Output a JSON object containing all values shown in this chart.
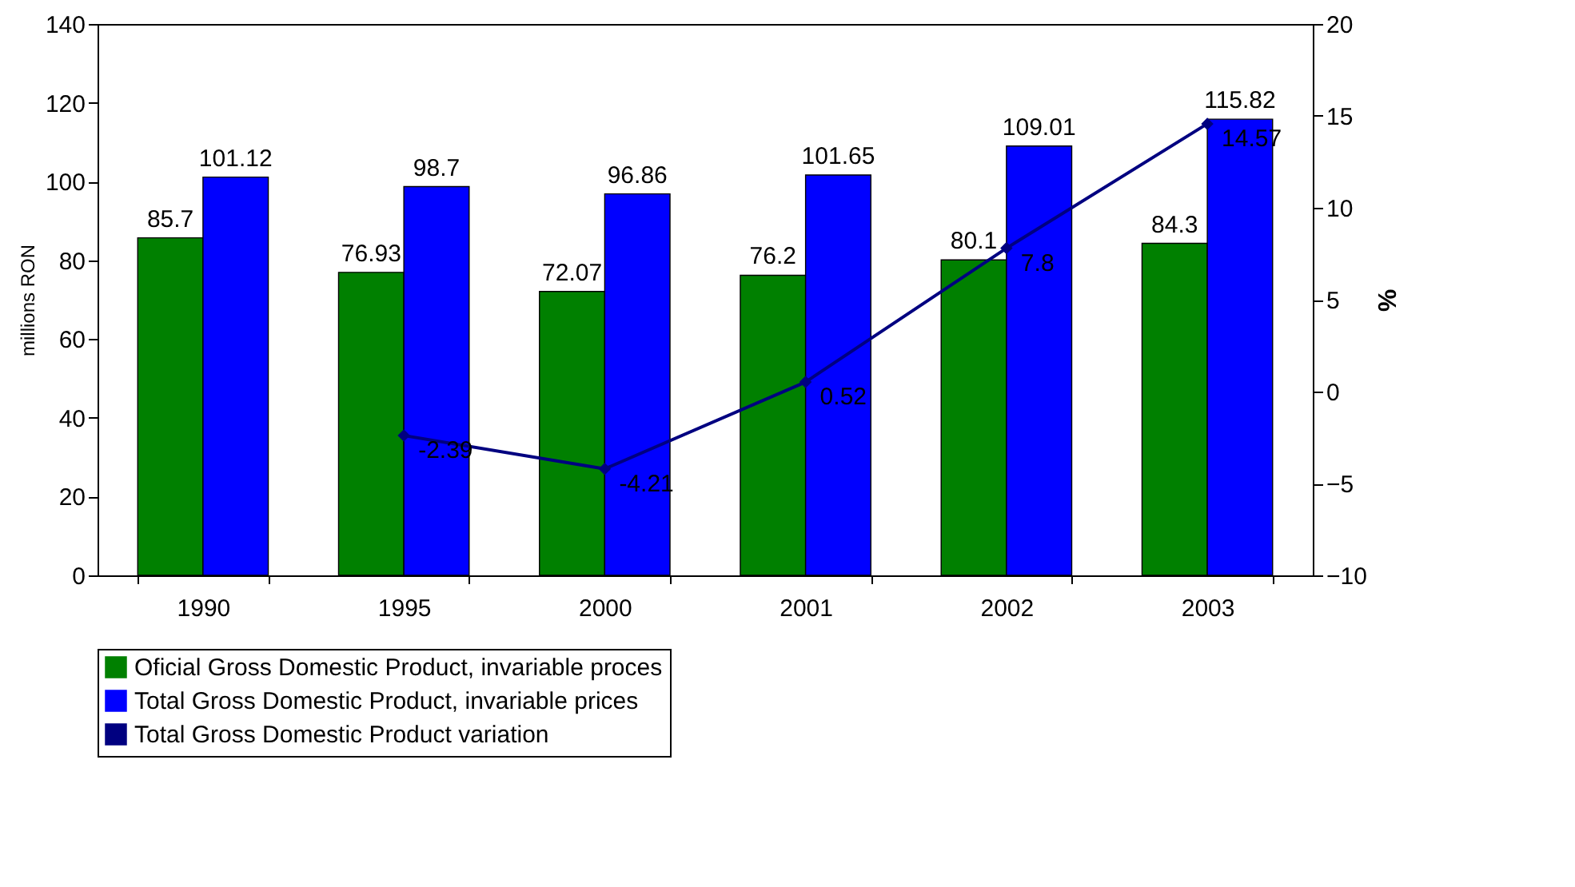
{
  "chart_data": {
    "type": "bar",
    "categories": [
      "1990",
      "1995",
      "2000",
      "2001",
      "2002",
      "2003"
    ],
    "series": [
      {
        "name": "Oficial Gross Domestic Product, invariable proces",
        "color": "#008000",
        "values": [
          85.7,
          76.93,
          72.07,
          76.2,
          80.1,
          84.3
        ]
      },
      {
        "name": "Total Gross Domestic Product, invariable prices",
        "color": "#0000ff",
        "values": [
          101.12,
          98.7,
          96.86,
          101.65,
          109.01,
          115.82
        ]
      },
      {
        "name": "Total Gross Domestic Product variation",
        "type": "line",
        "axis": "y2",
        "color": "#000080",
        "values": [
          null,
          -2.39,
          -4.21,
          0.52,
          7.8,
          14.57
        ]
      }
    ],
    "ylabel": "millions RON",
    "y2label": "%",
    "ylim": [
      0,
      140
    ],
    "yticks": [
      0,
      20,
      40,
      60,
      80,
      100,
      120,
      140
    ],
    "y2lim": [
      -10,
      20
    ],
    "y2ticks": [
      -10,
      -5,
      0,
      5,
      10,
      15,
      20
    ],
    "data_labels": true,
    "marker": "diamond",
    "legend": "bottom"
  }
}
